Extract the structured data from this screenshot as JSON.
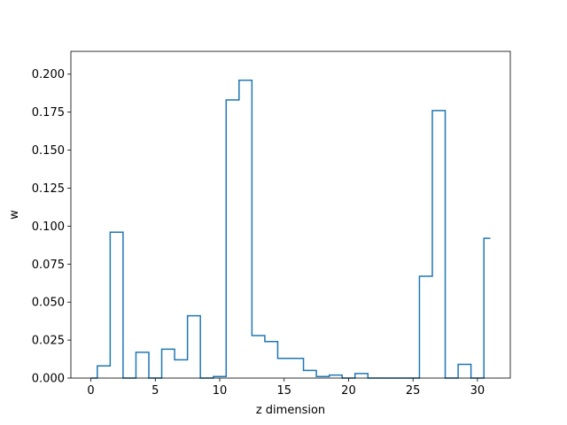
{
  "chart_data": {
    "type": "step",
    "title": "",
    "xlabel": "z dimension",
    "ylabel": "w",
    "xlim": [
      -1.55,
      32.55
    ],
    "ylim": [
      0,
      0.215
    ],
    "grid": false,
    "legend": "none",
    "line_color": "#1f77b4",
    "xticks": [
      0,
      5,
      10,
      15,
      20,
      25,
      30
    ],
    "xtick_labels": [
      "0",
      "5",
      "10",
      "15",
      "20",
      "25",
      "30"
    ],
    "yticks": [
      0.0,
      0.025,
      0.05,
      0.075,
      0.1,
      0.125,
      0.15,
      0.175,
      0.2
    ],
    "ytick_labels": [
      "0.000",
      "0.025",
      "0.050",
      "0.075",
      "0.100",
      "0.125",
      "0.150",
      "0.175",
      "0.200"
    ],
    "x": [
      0,
      1,
      2,
      3,
      4,
      5,
      6,
      7,
      8,
      9,
      10,
      11,
      12,
      13,
      14,
      15,
      16,
      17,
      18,
      19,
      20,
      21,
      22,
      23,
      24,
      25,
      26,
      27,
      28,
      29,
      30,
      31
    ],
    "values": [
      0.0,
      0.008,
      0.096,
      0.0,
      0.017,
      0.0,
      0.019,
      0.012,
      0.041,
      0.0,
      0.001,
      0.183,
      0.196,
      0.028,
      0.024,
      0.013,
      0.013,
      0.005,
      0.001,
      0.002,
      0.0,
      0.003,
      0.0,
      0.0,
      0.0,
      0.0,
      0.067,
      0.176,
      0.0,
      0.009,
      0.0,
      0.092
    ]
  }
}
